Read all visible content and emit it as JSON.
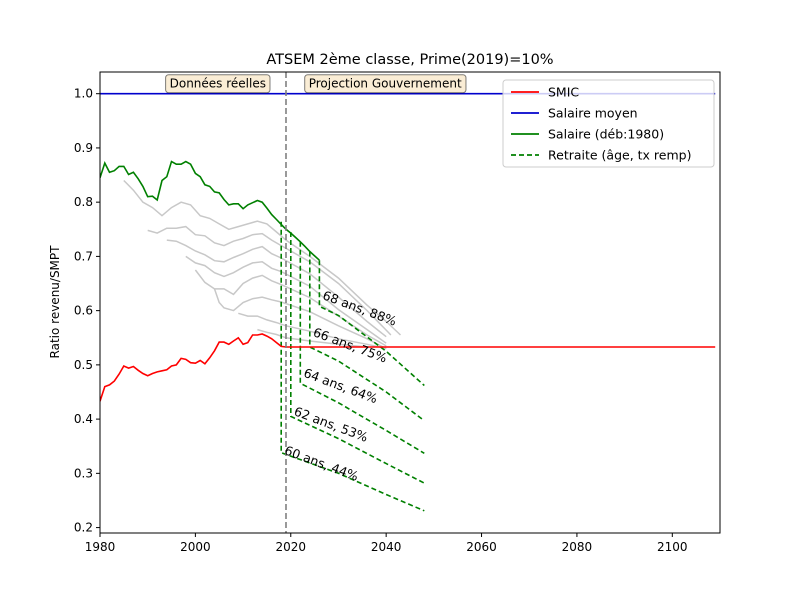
{
  "chart_data": {
    "type": "line",
    "title": "ATSEM 2ème classe, Prime(2019)=10%",
    "xlabel": "",
    "ylabel": "Ratio revenu/SMPT",
    "xlim": [
      1980,
      2110
    ],
    "ylim": [
      0.19,
      1.04
    ],
    "x_ticks": [
      1980,
      2000,
      2020,
      2040,
      2060,
      2080,
      2100
    ],
    "y_ticks": [
      0.2,
      0.3,
      0.4,
      0.5,
      0.6,
      0.7,
      0.8,
      0.9,
      1.0
    ],
    "y_tick_labels": [
      "0.2",
      "0.3",
      "0.4",
      "0.5",
      "0.6",
      "0.7",
      "0.8",
      "0.9",
      "1.0"
    ],
    "grid": false,
    "legend_position": "top-right",
    "divider": {
      "x": 2019,
      "color": "#808080"
    },
    "region_labels": [
      {
        "text": "Données réelles",
        "x": 2004.7,
        "y": 1.011
      },
      {
        "text": "Projection Gouvernement",
        "x": 2039.8,
        "y": 1.011
      }
    ],
    "series": [
      {
        "name": "SMIC",
        "color": "#ff0000",
        "style": "solid",
        "points": [
          [
            1980,
            0.433
          ],
          [
            1981,
            0.46
          ],
          [
            1982,
            0.463
          ],
          [
            1983,
            0.47
          ],
          [
            1984,
            0.483
          ],
          [
            1985,
            0.498
          ],
          [
            1986,
            0.494
          ],
          [
            1987,
            0.497
          ],
          [
            1988,
            0.49
          ],
          [
            1989,
            0.484
          ],
          [
            1990,
            0.48
          ],
          [
            1991,
            0.484
          ],
          [
            1992,
            0.487
          ],
          [
            1993,
            0.489
          ],
          [
            1994,
            0.491
          ],
          [
            1995,
            0.498
          ],
          [
            1996,
            0.5
          ],
          [
            1997,
            0.512
          ],
          [
            1998,
            0.51
          ],
          [
            1999,
            0.504
          ],
          [
            2000,
            0.503
          ],
          [
            2001,
            0.508
          ],
          [
            2002,
            0.502
          ],
          [
            2003,
            0.513
          ],
          [
            2004,
            0.526
          ],
          [
            2005,
            0.542
          ],
          [
            2006,
            0.542
          ],
          [
            2007,
            0.538
          ],
          [
            2008,
            0.544
          ],
          [
            2009,
            0.55
          ],
          [
            2010,
            0.538
          ],
          [
            2011,
            0.541
          ],
          [
            2012,
            0.555
          ],
          [
            2013,
            0.555
          ],
          [
            2014,
            0.557
          ],
          [
            2015,
            0.553
          ],
          [
            2016,
            0.548
          ],
          [
            2017,
            0.541
          ],
          [
            2018,
            0.534
          ],
          [
            2019,
            0.533
          ],
          [
            2020,
            0.533
          ],
          [
            2030,
            0.533
          ],
          [
            2050,
            0.533
          ],
          [
            2080,
            0.533
          ],
          [
            2109,
            0.533
          ]
        ]
      },
      {
        "name": "Salaire moyen",
        "color": "#0000cc",
        "style": "solid",
        "points": [
          [
            1980,
            1.0
          ],
          [
            2109,
            1.0
          ]
        ]
      },
      {
        "name": "Salaire (déb:1980)",
        "color": "#008000",
        "style": "solid",
        "points": [
          [
            1980,
            0.845
          ],
          [
            1981,
            0.872
          ],
          [
            1982,
            0.855
          ],
          [
            1983,
            0.858
          ],
          [
            1984,
            0.866
          ],
          [
            1985,
            0.866
          ],
          [
            1986,
            0.851
          ],
          [
            1987,
            0.855
          ],
          [
            1988,
            0.843
          ],
          [
            1989,
            0.829
          ],
          [
            1990,
            0.81
          ],
          [
            1991,
            0.811
          ],
          [
            1992,
            0.804
          ],
          [
            1993,
            0.84
          ],
          [
            1994,
            0.847
          ],
          [
            1995,
            0.875
          ],
          [
            1996,
            0.87
          ],
          [
            1997,
            0.87
          ],
          [
            1998,
            0.875
          ],
          [
            1999,
            0.87
          ],
          [
            2000,
            0.853
          ],
          [
            2001,
            0.847
          ],
          [
            2002,
            0.832
          ],
          [
            2003,
            0.829
          ],
          [
            2004,
            0.819
          ],
          [
            2005,
            0.817
          ],
          [
            2006,
            0.805
          ],
          [
            2007,
            0.795
          ],
          [
            2008,
            0.797
          ],
          [
            2009,
            0.797
          ],
          [
            2010,
            0.788
          ],
          [
            2011,
            0.795
          ],
          [
            2012,
            0.799
          ],
          [
            2013,
            0.803
          ],
          [
            2014,
            0.8
          ],
          [
            2015,
            0.789
          ],
          [
            2016,
            0.777
          ],
          [
            2017,
            0.768
          ],
          [
            2018,
            0.759
          ],
          [
            2019,
            0.75
          ],
          [
            2020,
            0.743
          ],
          [
            2021,
            0.735
          ],
          [
            2022,
            0.727
          ],
          [
            2023,
            0.718
          ],
          [
            2024,
            0.709
          ],
          [
            2025,
            0.701
          ],
          [
            2026,
            0.693
          ]
        ]
      },
      {
        "name": "Retraite (âge, tx remp)",
        "color": "#008000",
        "style": "dashed",
        "points": []
      }
    ],
    "retirement_curves": [
      {
        "label": "60 ans, 44%",
        "label_x": 2018.5,
        "label_y": 0.336,
        "rotation": 20.5,
        "points": [
          [
            2018,
            0.764
          ],
          [
            2018,
            0.338
          ],
          [
            2030,
            0.3
          ],
          [
            2040,
            0.261
          ],
          [
            2048,
            0.231
          ]
        ]
      },
      {
        "label": "62 ans, 53%",
        "label_x": 2020.5,
        "label_y": 0.408,
        "rotation": 20.5,
        "points": [
          [
            2020,
            0.745
          ],
          [
            2020,
            0.405
          ],
          [
            2030,
            0.364
          ],
          [
            2040,
            0.318
          ],
          [
            2048,
            0.282
          ]
        ]
      },
      {
        "label": "64 ans, 64%",
        "label_x": 2022.5,
        "label_y": 0.479,
        "rotation": 20.5,
        "points": [
          [
            2022,
            0.727
          ],
          [
            2022,
            0.466
          ],
          [
            2030,
            0.43
          ],
          [
            2040,
            0.379
          ],
          [
            2048,
            0.337
          ]
        ]
      },
      {
        "label": "66 ans, 75%",
        "label_x": 2024.5,
        "label_y": 0.554,
        "rotation": 20.5,
        "points": [
          [
            2024,
            0.709
          ],
          [
            2024,
            0.533
          ],
          [
            2030,
            0.507
          ],
          [
            2040,
            0.45
          ],
          [
            2048,
            0.397
          ]
        ]
      },
      {
        "label": "68 ans, 88%",
        "label_x": 2026.5,
        "label_y": 0.622,
        "rotation": 20.5,
        "points": [
          [
            2026,
            0.693
          ],
          [
            2026,
            0.608
          ],
          [
            2030,
            0.591
          ],
          [
            2040,
            0.525
          ],
          [
            2048,
            0.462
          ]
        ]
      }
    ],
    "grey_curves": {
      "color": "#c8c8c8",
      "lines": [
        [
          [
            1985,
            0.84
          ],
          [
            1987,
            0.822
          ],
          [
            1989,
            0.8
          ],
          [
            1991,
            0.79
          ],
          [
            1993,
            0.775
          ],
          [
            1995,
            0.79
          ],
          [
            1997,
            0.8
          ],
          [
            1999,
            0.795
          ],
          [
            2001,
            0.775
          ],
          [
            2003,
            0.77
          ],
          [
            2005,
            0.76
          ],
          [
            2007,
            0.75
          ],
          [
            2009,
            0.755
          ],
          [
            2011,
            0.76
          ],
          [
            2013,
            0.765
          ],
          [
            2015,
            0.76
          ],
          [
            2017,
            0.745
          ],
          [
            2019,
            0.73
          ],
          [
            2024,
            0.7
          ],
          [
            2030,
            0.66
          ],
          [
            2036,
            0.61
          ],
          [
            2040,
            0.58
          ],
          [
            2043,
            0.555
          ]
        ],
        [
          [
            1990,
            0.748
          ],
          [
            1992,
            0.743
          ],
          [
            1994,
            0.752
          ],
          [
            1996,
            0.752
          ],
          [
            1998,
            0.755
          ],
          [
            2000,
            0.74
          ],
          [
            2002,
            0.738
          ],
          [
            2004,
            0.725
          ],
          [
            2006,
            0.72
          ],
          [
            2008,
            0.728
          ],
          [
            2010,
            0.733
          ],
          [
            2012,
            0.74
          ],
          [
            2014,
            0.742
          ],
          [
            2016,
            0.73
          ],
          [
            2018,
            0.72
          ],
          [
            2024,
            0.69
          ],
          [
            2030,
            0.65
          ],
          [
            2036,
            0.6
          ],
          [
            2041,
            0.555
          ]
        ],
        [
          [
            1994,
            0.73
          ],
          [
            1996,
            0.728
          ],
          [
            1998,
            0.72
          ],
          [
            2000,
            0.71
          ],
          [
            2002,
            0.703
          ],
          [
            2004,
            0.692
          ],
          [
            2006,
            0.69
          ],
          [
            2008,
            0.698
          ],
          [
            2010,
            0.705
          ],
          [
            2012,
            0.713
          ],
          [
            2014,
            0.718
          ],
          [
            2016,
            0.705
          ],
          [
            2018,
            0.697
          ],
          [
            2024,
            0.668
          ],
          [
            2030,
            0.625
          ],
          [
            2036,
            0.58
          ],
          [
            2040,
            0.552
          ]
        ],
        [
          [
            1998,
            0.7
          ],
          [
            2000,
            0.688
          ],
          [
            2002,
            0.683
          ],
          [
            2004,
            0.67
          ],
          [
            2006,
            0.663
          ],
          [
            2008,
            0.67
          ],
          [
            2010,
            0.68
          ],
          [
            2012,
            0.688
          ],
          [
            2014,
            0.69
          ],
          [
            2016,
            0.678
          ],
          [
            2018,
            0.672
          ],
          [
            2024,
            0.645
          ],
          [
            2030,
            0.602
          ],
          [
            2036,
            0.565
          ],
          [
            2040,
            0.54
          ]
        ],
        [
          [
            2000,
            0.675
          ],
          [
            2002,
            0.652
          ],
          [
            2004,
            0.64
          ],
          [
            2006,
            0.64
          ],
          [
            2008,
            0.63
          ],
          [
            2010,
            0.65
          ],
          [
            2012,
            0.66
          ],
          [
            2014,
            0.665
          ],
          [
            2016,
            0.655
          ],
          [
            2018,
            0.648
          ],
          [
            2024,
            0.624
          ],
          [
            2030,
            0.59
          ],
          [
            2036,
            0.555
          ],
          [
            2040,
            0.535
          ]
        ],
        [
          [
            2004,
            0.64
          ],
          [
            2005,
            0.615
          ],
          [
            2006,
            0.605
          ],
          [
            2008,
            0.6
          ],
          [
            2010,
            0.615
          ],
          [
            2012,
            0.622
          ],
          [
            2014,
            0.625
          ],
          [
            2016,
            0.62
          ],
          [
            2018,
            0.616
          ],
          [
            2024,
            0.598
          ],
          [
            2030,
            0.572
          ],
          [
            2036,
            0.548
          ],
          [
            2040,
            0.53
          ]
        ],
        [
          [
            2009,
            0.595
          ],
          [
            2011,
            0.59
          ],
          [
            2013,
            0.59
          ],
          [
            2015,
            0.583
          ],
          [
            2017,
            0.578
          ],
          [
            2019,
            0.572
          ],
          [
            2024,
            0.562
          ],
          [
            2030,
            0.548
          ],
          [
            2036,
            0.538
          ],
          [
            2040,
            0.53
          ]
        ],
        [
          [
            2013,
            0.565
          ],
          [
            2015,
            0.56
          ],
          [
            2017,
            0.556
          ],
          [
            2019,
            0.55
          ],
          [
            2024,
            0.544
          ],
          [
            2030,
            0.538
          ],
          [
            2036,
            0.533
          ]
        ]
      ]
    }
  }
}
